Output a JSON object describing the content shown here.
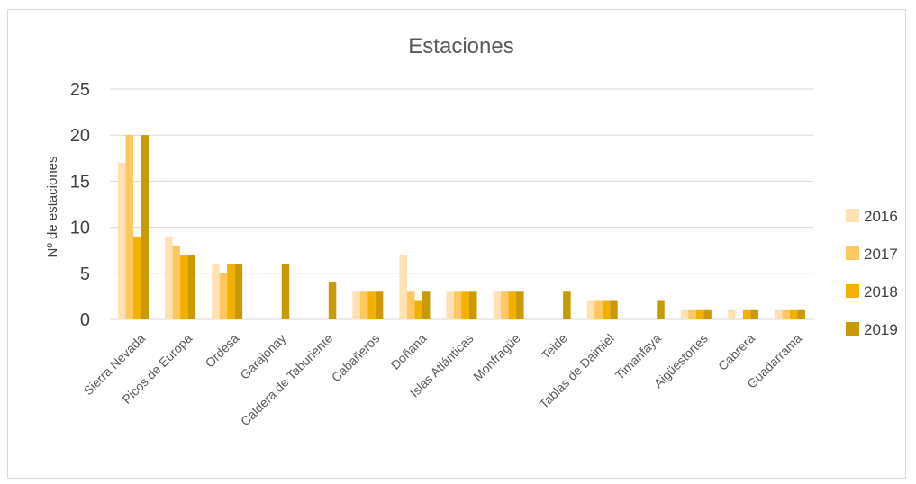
{
  "chart_data": {
    "type": "bar",
    "title": "Estaciones",
    "xlabel": "",
    "ylabel": "Nº de estaciones",
    "ylim": [
      0,
      25
    ],
    "yticks": [
      0,
      5,
      10,
      15,
      20,
      25
    ],
    "grid": true,
    "legend_position": "right",
    "categories": [
      "Sierra Nevada",
      "Picos de Europa",
      "Ordesa",
      "Garajonay",
      "Caldera de Taburiente",
      "Cabañeros",
      "Doñana",
      "Islas Atlánticas",
      "Monfragüe",
      "Teide",
      "Tablas de Daimiel",
      "Timanfaya",
      "Aigüestortes",
      "Cabrera",
      "Guadarrama"
    ],
    "series": [
      {
        "name": "2016",
        "color": "#ffe1b3",
        "values": [
          17,
          9,
          6,
          0,
          0,
          3,
          7,
          3,
          3,
          0,
          2,
          0,
          1,
          1,
          1
        ]
      },
      {
        "name": "2017",
        "color": "#ffc75f",
        "values": [
          20,
          8,
          5,
          0,
          0,
          3,
          3,
          3,
          3,
          0,
          2,
          0,
          1,
          0,
          1
        ]
      },
      {
        "name": "2018",
        "color": "#f2b000",
        "values": [
          9,
          7,
          6,
          0,
          0,
          3,
          2,
          3,
          3,
          0,
          2,
          0,
          1,
          1,
          1
        ]
      },
      {
        "name": "2019",
        "color": "#c99a06",
        "values": [
          20,
          7,
          6,
          6,
          4,
          3,
          3,
          3,
          3,
          3,
          2,
          2,
          1,
          1,
          1
        ]
      }
    ]
  }
}
